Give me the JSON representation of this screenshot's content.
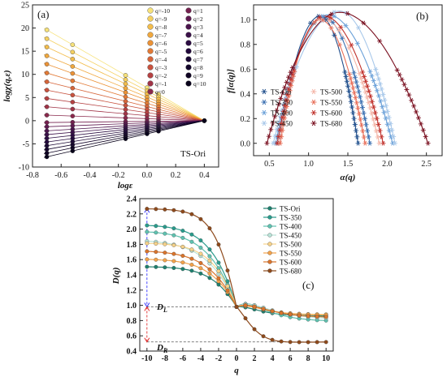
{
  "colors": {
    "axis": "#222222",
    "grid": "#cfcfcf",
    "dash": "#555555",
    "DL_arrow": "#3333ff",
    "DR_arrow": "#e03030"
  },
  "chart_data": [
    {
      "id": "a",
      "type": "line",
      "panel_label": "(a)",
      "annotation": "TS-Ori",
      "xlabel": "logε",
      "ylabel": "logχ(q,ε)",
      "xlim": [
        -0.8,
        0.5
      ],
      "ylim": [
        -10,
        25
      ],
      "xticks": [
        "-0.8",
        "-0.6",
        "-0.4",
        "-0.2",
        "0.0",
        "0.2",
        "0.4"
      ],
      "yticks": [
        "-10",
        "-5",
        "0",
        "5",
        "10",
        "15",
        "20",
        "25"
      ],
      "x": [
        -0.7,
        -0.52,
        -0.15,
        0.0,
        0.08,
        0.4
      ],
      "converge_point": [
        0.4,
        0.0
      ],
      "q_values": [
        -10,
        -9,
        -8,
        -7,
        -6,
        -5,
        -4,
        -3,
        -2,
        -1,
        0,
        1,
        2,
        3,
        4,
        5,
        6,
        7,
        8,
        9,
        10
      ],
      "legend_labels": [
        "q=-10",
        "q=-9",
        "q=-8",
        "q=-7",
        "q=-6",
        "q=-5",
        "q=-4",
        "q=-3",
        "q=-2",
        "q=-1",
        "q=0",
        "q=1",
        "q=2",
        "q=3",
        "q=4",
        "q=5",
        "q=6",
        "q=7",
        "q=8",
        "q=9",
        "q=10"
      ],
      "y_at_leftmost": [
        19.6,
        17.7,
        15.9,
        14.0,
        12.2,
        10.3,
        8.4,
        6.6,
        4.8,
        3.0,
        1.2,
        -0.4,
        -1.3,
        -2.2,
        -3.0,
        -3.8,
        -4.6,
        -5.4,
        -6.2,
        -7.0,
        -7.8
      ],
      "series_colors": [
        "#f7e27a",
        "#f5d060",
        "#f3bd4c",
        "#f0a83e",
        "#eb9236",
        "#e27a36",
        "#d6653a",
        "#c8523e",
        "#b54142",
        "#a03447",
        "#8a294c",
        "#74214f",
        "#5f1a50",
        "#4b144c",
        "#3a1048",
        "#2c0d42",
        "#22093b",
        "#1a0733",
        "#14052b",
        "#0e0322",
        "#08021a"
      ]
    },
    {
      "id": "b",
      "type": "scatter",
      "panel_label": "(b)",
      "xlabel": "α(q)",
      "ylabel": "f[α(q)]",
      "xlim": [
        0.3,
        2.7
      ],
      "ylim": [
        -0.1,
        1.12
      ],
      "xticks": [
        "0.5",
        "1.0",
        "1.5",
        "2.0",
        "2.5"
      ],
      "yticks": [
        "0.0",
        "0.2",
        "0.4",
        "0.6",
        "0.8",
        "1.0"
      ],
      "series": [
        {
          "name": "TS-Ori",
          "color": "#1f4e8c",
          "a_min": 0.62,
          "a_peak": 1.15,
          "a_max": 1.63,
          "peak": 1.03
        },
        {
          "name": "TS-350",
          "color": "#3a6fb0",
          "a_min": 0.6,
          "a_peak": 1.2,
          "a_max": 1.78,
          "peak": 1.02
        },
        {
          "name": "TS-400",
          "color": "#6aa0d8",
          "a_min": 0.58,
          "a_peak": 1.25,
          "a_max": 2.07,
          "peak": 1.04
        },
        {
          "name": "TS-450",
          "color": "#a8c8ea",
          "a_min": 0.55,
          "a_peak": 1.4,
          "a_max": 2.1,
          "peak": 1.07
        },
        {
          "name": "TS-500",
          "color": "#f4b6a8",
          "a_min": 0.62,
          "a_peak": 1.18,
          "a_max": 1.9,
          "peak": 1.01
        },
        {
          "name": "TS-550",
          "color": "#e8705a",
          "a_min": 0.64,
          "a_peak": 1.15,
          "a_max": 1.72,
          "peak": 1.0
        },
        {
          "name": "TS-600",
          "color": "#c0302a",
          "a_min": 0.6,
          "a_peak": 1.2,
          "a_max": 1.95,
          "peak": 1.03
        },
        {
          "name": "TS-680",
          "color": "#7a1020",
          "a_min": 0.47,
          "a_peak": 1.4,
          "a_max": 2.52,
          "peak": 1.06
        }
      ]
    },
    {
      "id": "c",
      "type": "line",
      "panel_label": "(c)",
      "xlabel": "q",
      "ylabel": "D(q)",
      "xlim": [
        -10.8,
        10.8
      ],
      "ylim": [
        0.4,
        2.4
      ],
      "xticks": [
        "-10",
        "-8",
        "-6",
        "-4",
        "-2",
        "0",
        "2",
        "4",
        "6",
        "8",
        "10"
      ],
      "yticks": [
        "0.4",
        "0.6",
        "0.8",
        "1.0",
        "1.2",
        "1.4",
        "1.6",
        "1.8",
        "2.0",
        "2.2",
        "2.4"
      ],
      "q": [
        -10,
        -9,
        -8,
        -7,
        -6,
        -5,
        -4,
        -3,
        -2,
        -1,
        0,
        1,
        2,
        3,
        4,
        5,
        6,
        7,
        8,
        9,
        10
      ],
      "annotations": {
        "DL": "D",
        "DL_sub": "L",
        "DR": "D",
        "DR_sub": "R",
        "D0_level": 0.98,
        "Dmin_level": 0.52
      },
      "series": [
        {
          "name": "TS-Ori",
          "color": "#1f7f6e",
          "dmax": 1.51,
          "dmin": 0.86,
          "k": 0.55
        },
        {
          "name": "TS-350",
          "color": "#2a9b8c",
          "dmax": 2.06,
          "dmin": 0.85,
          "k": 0.5
        },
        {
          "name": "TS-400",
          "color": "#5fc2b0",
          "dmax": 1.98,
          "dmin": 0.79,
          "k": 0.45
        },
        {
          "name": "TS-450",
          "color": "#b9e3d8",
          "dmax": 1.86,
          "dmin": 0.82,
          "k": 0.42
        },
        {
          "name": "TS-500",
          "color": "#f6d28a",
          "dmax": 1.82,
          "dmin": 0.88,
          "k": 0.55
        },
        {
          "name": "TS-550",
          "color": "#f2a24b",
          "dmax": 1.61,
          "dmin": 0.87,
          "k": 0.5
        },
        {
          "name": "TS-600",
          "color": "#d9742c",
          "dmax": 1.72,
          "dmin": 0.84,
          "k": 0.45
        },
        {
          "name": "TS-680",
          "color": "#8e4a1c",
          "dmax": 2.27,
          "dmin": 0.52,
          "k": 0.75
        }
      ]
    }
  ]
}
